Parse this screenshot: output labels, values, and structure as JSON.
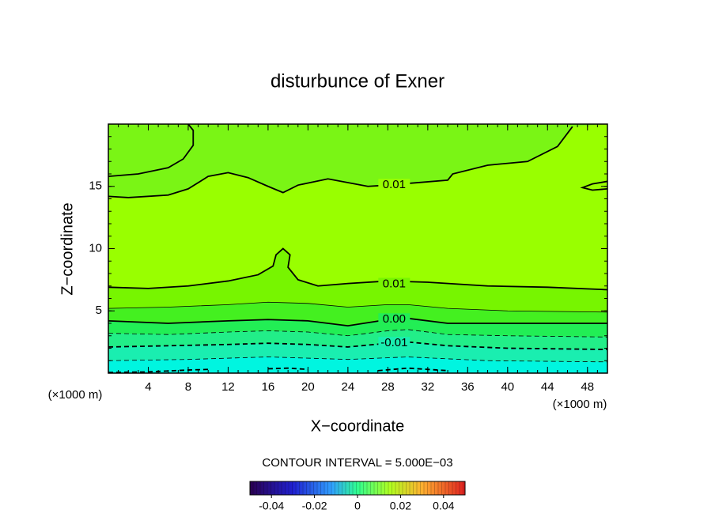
{
  "chart_data": {
    "type": "contour",
    "title": "disturbunce of Exner",
    "xlabel": "X−coordinate",
    "ylabel": "Z−coordinate",
    "x_unit": "(×1000 m)",
    "y_unit": "(×1000 m)",
    "note": "CONTOUR INTERVAL = 5.000E−03",
    "xlim": [
      0,
      50
    ],
    "ylim": [
      0,
      20
    ],
    "xticks": [
      4,
      8,
      12,
      16,
      20,
      24,
      28,
      32,
      36,
      40,
      44,
      48
    ],
    "yticks": [
      5,
      10,
      15
    ],
    "background": "#7af515",
    "contours": [
      {
        "level": 0.01,
        "label": "0.01",
        "fill": "#99ff00",
        "x": [
          0,
          2,
          6,
          8,
          10,
          12,
          14,
          16,
          17.5,
          19,
          22,
          26,
          28,
          34,
          34.5,
          38,
          42,
          45,
          46.5
        ],
        "z": [
          14.2,
          14.1,
          14.3,
          14.8,
          15.8,
          16.1,
          15.7,
          15.0,
          14.5,
          15.1,
          15.6,
          15.0,
          15.1,
          15.5,
          16.0,
          16.7,
          17.0,
          18.2,
          19.8
        ]
      },
      {
        "level": 0.01,
        "x": [
          0,
          3,
          6,
          7.5,
          8.5,
          8.5,
          8
        ],
        "z": [
          15.8,
          16.0,
          16.5,
          17.2,
          18.3,
          19.5,
          20
        ]
      },
      {
        "level": 0.01,
        "x": [
          50,
          48.5,
          47.5,
          48.5,
          50
        ],
        "z": [
          15.4,
          15.2,
          14.9,
          14.7,
          14.8
        ]
      },
      {
        "level": 0.01,
        "label": "0.01",
        "fill": "#77f500",
        "x": [
          0,
          4,
          8,
          12,
          15,
          16.5,
          16.8,
          17.5,
          18.2,
          18,
          19,
          21,
          24,
          28,
          32,
          38,
          44,
          50
        ],
        "z": [
          6.9,
          6.8,
          7.0,
          7.4,
          7.9,
          8.6,
          9.5,
          10.0,
          9.5,
          8.5,
          7.5,
          7.0,
          7.2,
          7.4,
          7.3,
          7.0,
          6.9,
          6.7
        ]
      },
      {
        "level": 0.005,
        "fill": "#44f020",
        "x": [
          0,
          6,
          12,
          16,
          20,
          24,
          28,
          30,
          34,
          40,
          50
        ],
        "z": [
          5.2,
          5.3,
          5.5,
          5.7,
          5.6,
          5.3,
          5.5,
          5.5,
          5.2,
          5.0,
          4.9
        ]
      },
      {
        "level": 0,
        "label": "0.00",
        "fill": "#22ee55",
        "x": [
          0,
          6,
          12,
          16,
          20,
          24,
          28,
          30,
          34,
          40,
          50
        ],
        "z": [
          4.2,
          4.0,
          4.2,
          4.3,
          4.2,
          3.8,
          4.3,
          4.4,
          4.0,
          4.0,
          4.0
        ]
      },
      {
        "level": -0.005,
        "fill": "#22ee88",
        "x": [
          0,
          6,
          12,
          16,
          20,
          24,
          28,
          30,
          34,
          40,
          50
        ],
        "z": [
          3.2,
          3.1,
          3.3,
          3.4,
          3.3,
          3.0,
          3.4,
          3.5,
          3.1,
          3.0,
          2.9
        ]
      },
      {
        "level": -0.01,
        "label": "-0.01",
        "fill": "#1aeeb0",
        "x": [
          0,
          6,
          12,
          16,
          20,
          24,
          28,
          30,
          34,
          40,
          50
        ],
        "z": [
          2.1,
          2.2,
          2.3,
          2.4,
          2.3,
          2.1,
          2.4,
          2.5,
          2.2,
          2.0,
          1.9
        ]
      },
      {
        "level": -0.015,
        "fill": "#00f5e0",
        "x": [
          0,
          8,
          16,
          24,
          30,
          38,
          50
        ],
        "z": [
          1.0,
          1.1,
          1.3,
          1.1,
          1.3,
          1.0,
          0.9
        ]
      },
      {
        "level": -0.02,
        "x": [
          0,
          4,
          8,
          10,
          null,
          16,
          18,
          20,
          null,
          27,
          30,
          34
        ],
        "z": [
          0.05,
          0.1,
          0.25,
          0.3,
          null,
          0.35,
          0.4,
          0.3,
          null,
          0.2,
          0.4,
          0.2
        ]
      }
    ],
    "colorbar": {
      "lim": [
        -0.05,
        0.05
      ],
      "ticks": [
        -0.04,
        -0.02,
        0,
        0.02,
        0.04
      ]
    }
  }
}
